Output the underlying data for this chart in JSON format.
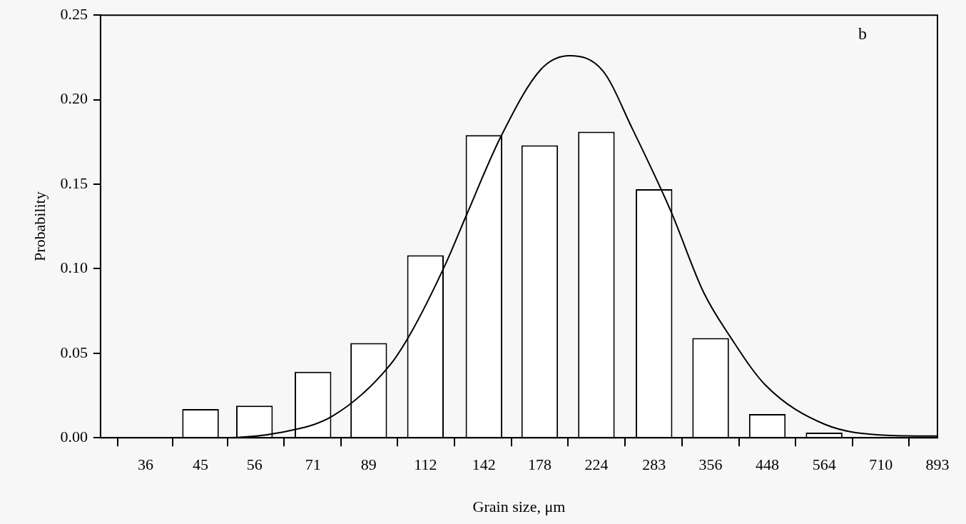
{
  "chart_data": {
    "type": "bar",
    "xlabel": "Grain size, μm",
    "ylabel": "Probability",
    "annotations": [
      "b"
    ],
    "log": "x",
    "grid": false,
    "xlim": [
      30,
      893
    ],
    "xticks": [
      36,
      45,
      56,
      71,
      89,
      112,
      142,
      178,
      224,
      283,
      356,
      448,
      564,
      710,
      893
    ],
    "ylim": [
      0,
      0.25
    ],
    "yticks": [
      {
        "value": 0,
        "label": "0.00"
      },
      {
        "value": 0.05,
        "label": "0.05"
      },
      {
        "value": 0.1,
        "label": "0.10"
      },
      {
        "value": 0.15,
        "label": "0.15"
      },
      {
        "value": 0.2,
        "label": "0.20"
      },
      {
        "value": 0.25,
        "label": "0.25"
      }
    ],
    "series": [
      {
        "color": "#ffffff",
        "x": [
          45,
          56,
          71,
          89,
          112,
          142,
          178,
          224,
          283,
          356,
          448,
          564
        ],
        "values": [
          0.017,
          0.019,
          0.039,
          0.056,
          0.108,
          0.179,
          0.173,
          0.181,
          0.147,
          0.059,
          0.014,
          0.003
        ]
      },
      {
        "type": "line",
        "color": "#000000",
        "x": [
          36,
          49,
          62,
          77,
          97,
          106,
          122,
          132,
          152,
          179,
          201,
          230,
          259,
          303,
          346,
          385,
          445,
          565,
          726,
          893
        ],
        "values": [
          0,
          0,
          0.003,
          0.013,
          0.043,
          0.063,
          0.104,
          0.131,
          0.178,
          0.218,
          0.226,
          0.217,
          0.183,
          0.134,
          0.086,
          0.06,
          0.031,
          0.008,
          0.0015,
          0.001
        ]
      }
    ]
  }
}
